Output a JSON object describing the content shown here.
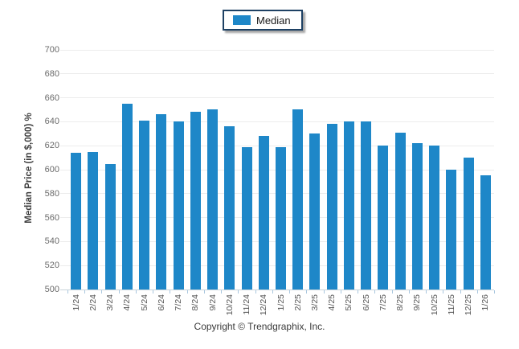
{
  "legend": {
    "label": "Median"
  },
  "footer": {
    "copyright": "Copyright © Trendgraphix, Inc."
  },
  "colors": {
    "bar": "#1e87c8",
    "legend_border": "#1e4164",
    "gridline": "#ececec",
    "axis_line": "#c7d3da",
    "axis_tick": "#a9c7df",
    "y_tick_text": "#6b6b6b",
    "x_tick_text": "#555555"
  },
  "chart_data": {
    "type": "bar",
    "title": "",
    "xlabel": "",
    "ylabel": "Median Price (in $,000) %",
    "ylim": [
      500,
      700
    ],
    "ytick_step": 20,
    "grid": true,
    "legend_entries": [
      "Median"
    ],
    "legend_position": "top-center",
    "categories": [
      "1/24",
      "2/24",
      "3/24",
      "4/24",
      "5/24",
      "6/24",
      "7/24",
      "8/24",
      "9/24",
      "10/24",
      "11/24",
      "12/24",
      "1/25",
      "2/25",
      "3/25",
      "4/25",
      "5/25",
      "6/25",
      "7/25",
      "8/25",
      "9/25",
      "10/25",
      "11/25",
      "12/25",
      "1/26"
    ],
    "values": [
      614,
      615,
      605,
      655,
      641,
      646,
      640,
      648,
      650,
      636,
      619,
      628,
      619,
      650,
      630,
      638,
      640,
      640,
      620,
      631,
      622,
      620,
      600,
      610,
      595
    ]
  }
}
